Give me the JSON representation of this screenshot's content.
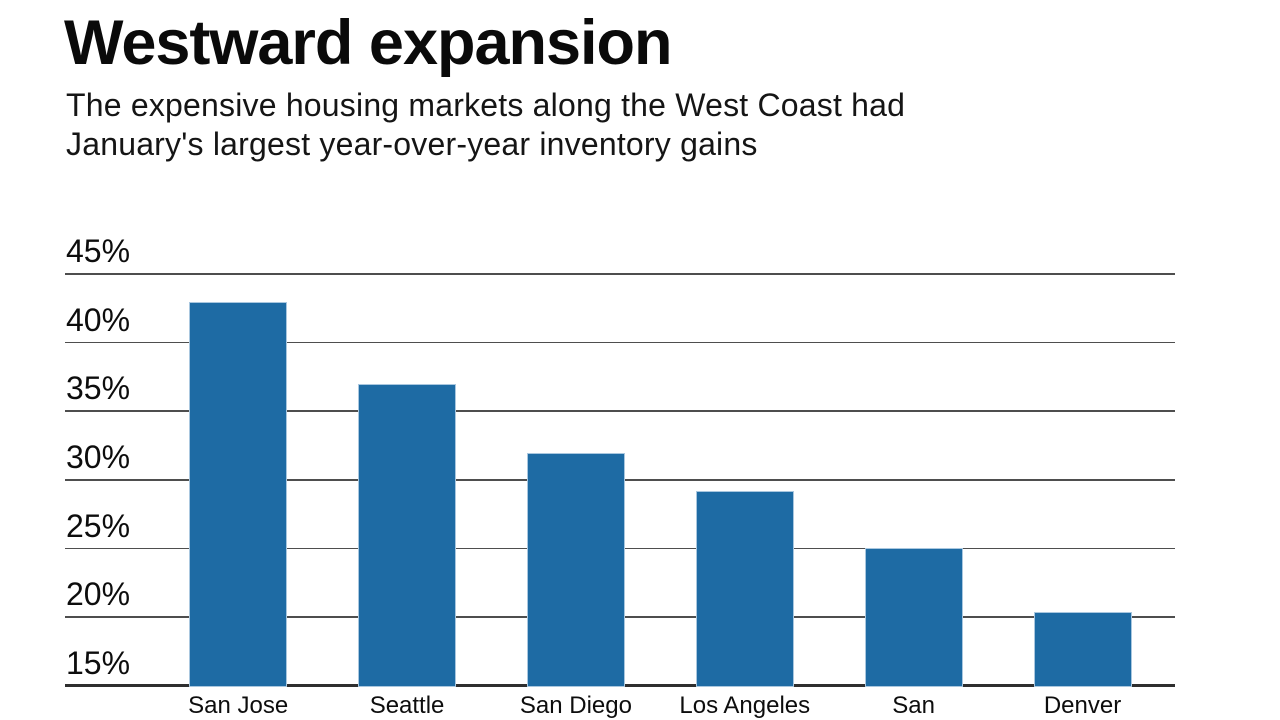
{
  "header": {
    "title": "Westward expansion",
    "subtitle_lines": [
      "The expensive housing markets along the West Coast had",
      "January's largest year-over-year inventory gains"
    ]
  },
  "chart_data": {
    "type": "bar",
    "title": "Westward expansion",
    "subtitle": "The expensive housing markets along the West Coast had January's largest year-over-year inventory gains",
    "categories": [
      "San Jose",
      "Seattle",
      "San Diego",
      "Los Angeles",
      "San",
      "Denver"
    ],
    "values": [
      42.9,
      36.9,
      31.9,
      29.1,
      25.0,
      20.3
    ],
    "unit": "percent year-over-year inventory gain",
    "xlabel": "",
    "ylabel": "",
    "ylim": [
      15,
      45
    ],
    "y_ticks": [
      {
        "value": 45,
        "label": "45%"
      },
      {
        "value": 40,
        "label": "40%"
      },
      {
        "value": 35,
        "label": "35%"
      },
      {
        "value": 30,
        "label": "30%"
      },
      {
        "value": 25,
        "label": "25%"
      },
      {
        "value": 20,
        "label": "20%"
      },
      {
        "value": 15,
        "label": "15%"
      }
    ],
    "grid": "horizontal",
    "legend": "none",
    "colors": {
      "bar_fill": "#1e6ba4",
      "bar_border": "#a9c7df",
      "gridline": "#4e4e4e",
      "axis_line": "#2f2f2f",
      "text": "#0d0d0d",
      "background": "#ffffff"
    }
  }
}
